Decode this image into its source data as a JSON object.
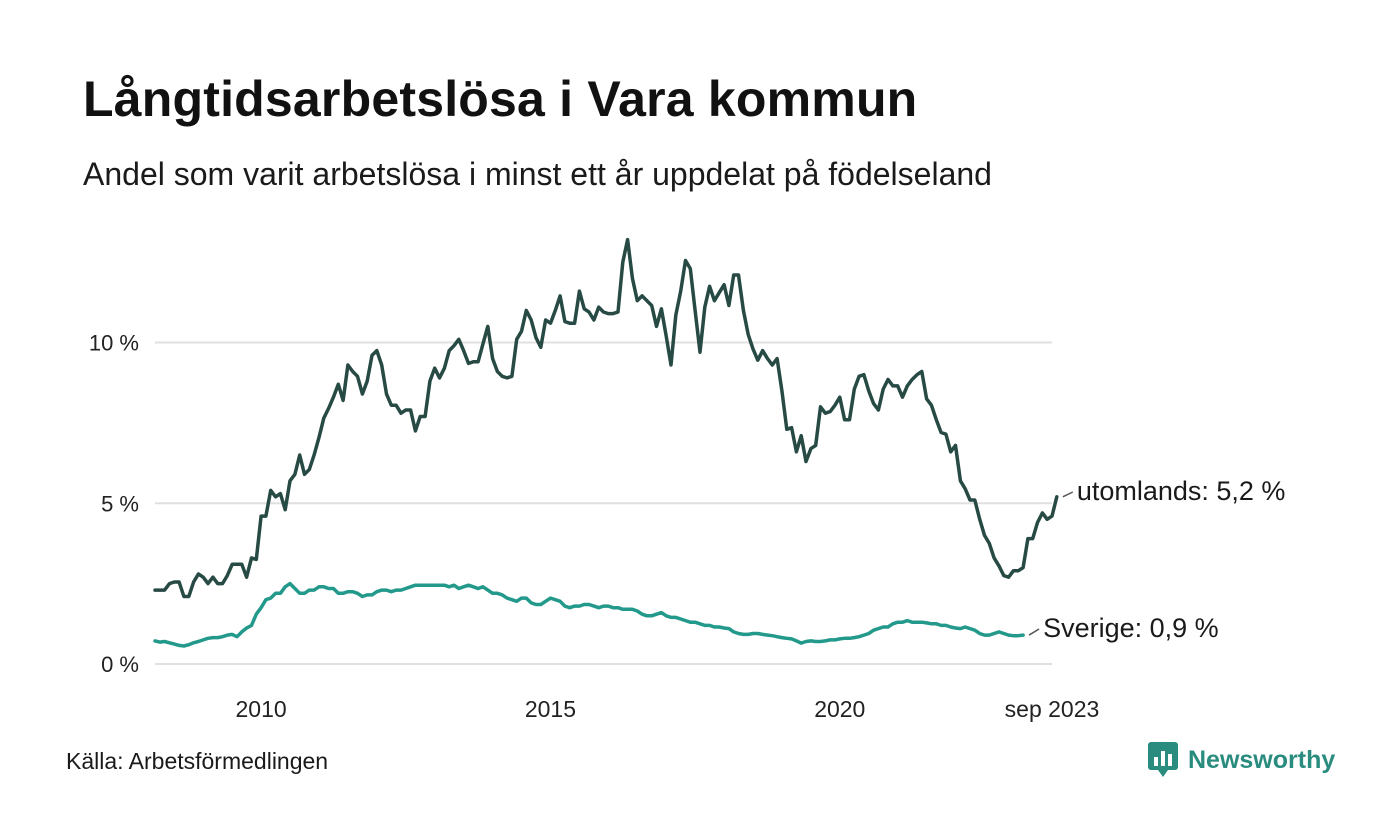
{
  "title": "Långtidsarbetslösa i Vara kommun",
  "subtitle": "Andel som varit arbetslösa i minst ett år uppdelat på födelseland",
  "source": "Källa: Arbetsförmedlingen",
  "brand": "Newsworthy",
  "colors": {
    "utomlands": "#274a44",
    "sverige": "#22998a",
    "grid": "#e0e0e0",
    "brand": "#2a8c7e"
  },
  "chart_data": {
    "type": "line",
    "title": "Långtidsarbetslösa i Vara kommun",
    "xlabel": "",
    "ylabel": "",
    "x_start": 2008.167,
    "x_step": 0.0833333,
    "xlim": [
      2008.167,
      2023.667
    ],
    "ylim": [
      0,
      13.5
    ],
    "y_ticks": [
      0,
      5,
      10
    ],
    "y_tick_labels": [
      "0 %",
      "5 %",
      "10 %"
    ],
    "x_ticks": [
      2010,
      2015,
      2020,
      2023.667
    ],
    "x_tick_labels": [
      "2010",
      "2015",
      "2020",
      "sep 2023"
    ],
    "series": [
      {
        "name": "utomlands",
        "end_label": "utomlands: 5,2 %",
        "values": [
          2.3,
          2.3,
          2.3,
          2.5,
          2.55,
          2.55,
          2.1,
          2.1,
          2.55,
          2.8,
          2.7,
          2.5,
          2.7,
          2.5,
          2.5,
          2.75,
          3.1,
          3.1,
          3.1,
          2.7,
          3.3,
          3.25,
          4.6,
          4.6,
          5.4,
          5.2,
          5.3,
          4.8,
          5.7,
          5.9,
          6.5,
          5.9,
          6.05,
          6.5,
          7.05,
          7.65,
          7.95,
          8.3,
          8.7,
          8.2,
          9.3,
          9.1,
          8.95,
          8.4,
          8.8,
          9.6,
          9.75,
          9.3,
          8.4,
          8.05,
          8.05,
          7.8,
          7.9,
          7.9,
          7.25,
          7.7,
          7.7,
          8.8,
          9.2,
          8.9,
          9.2,
          9.75,
          9.9,
          10.1,
          9.75,
          9.35,
          9.4,
          9.4,
          9.95,
          10.5,
          9.5,
          9.1,
          8.95,
          8.9,
          8.95,
          10.1,
          10.35,
          11.0,
          10.7,
          10.15,
          9.85,
          10.7,
          10.6,
          11.0,
          11.45,
          10.65,
          10.6,
          10.6,
          11.6,
          11.05,
          10.95,
          10.7,
          11.1,
          10.95,
          10.9,
          10.9,
          10.95,
          12.5,
          13.2,
          12.0,
          11.3,
          11.45,
          11.3,
          11.15,
          10.5,
          11.05,
          10.2,
          9.3,
          10.85,
          11.6,
          12.55,
          12.3,
          11.0,
          9.7,
          11.1,
          11.75,
          11.3,
          11.55,
          11.8,
          11.15,
          12.1,
          12.1,
          11.0,
          10.25,
          9.8,
          9.45,
          9.75,
          9.5,
          9.3,
          9.5,
          8.5,
          7.3,
          7.35,
          6.6,
          7.1,
          6.3,
          6.7,
          6.8,
          8.0,
          7.8,
          7.85,
          8.05,
          8.3,
          7.6,
          7.6,
          8.55,
          8.95,
          9.0,
          8.5,
          8.1,
          7.9,
          8.55,
          8.85,
          8.65,
          8.65,
          8.3,
          8.65,
          8.85,
          9.0,
          9.1,
          8.25,
          8.05,
          7.6,
          7.2,
          7.15,
          6.6,
          6.8,
          5.7,
          5.45,
          5.1,
          5.1,
          4.5,
          4.0,
          3.75,
          3.3,
          3.05,
          2.75,
          2.7,
          2.9,
          2.9,
          3.0,
          3.9,
          3.9,
          4.4,
          4.7,
          4.5,
          4.6,
          5.2
        ]
      },
      {
        "name": "Sverige",
        "end_label": "Sverige: 0,9 %",
        "values": [
          0.72,
          0.68,
          0.7,
          0.66,
          0.62,
          0.58,
          0.56,
          0.6,
          0.66,
          0.7,
          0.75,
          0.8,
          0.82,
          0.82,
          0.85,
          0.9,
          0.92,
          0.85,
          1.0,
          1.12,
          1.2,
          1.55,
          1.75,
          2.0,
          2.05,
          2.2,
          2.2,
          2.4,
          2.5,
          2.35,
          2.2,
          2.2,
          2.3,
          2.3,
          2.4,
          2.4,
          2.35,
          2.35,
          2.2,
          2.2,
          2.25,
          2.25,
          2.2,
          2.1,
          2.15,
          2.15,
          2.25,
          2.3,
          2.3,
          2.25,
          2.3,
          2.3,
          2.35,
          2.4,
          2.45,
          2.45,
          2.45,
          2.45,
          2.45,
          2.45,
          2.45,
          2.4,
          2.45,
          2.35,
          2.4,
          2.45,
          2.4,
          2.35,
          2.4,
          2.3,
          2.2,
          2.2,
          2.15,
          2.05,
          2.0,
          1.95,
          2.05,
          2.05,
          1.9,
          1.85,
          1.85,
          1.95,
          2.05,
          2.0,
          1.95,
          1.8,
          1.75,
          1.8,
          1.8,
          1.85,
          1.85,
          1.8,
          1.75,
          1.8,
          1.8,
          1.75,
          1.75,
          1.7,
          1.7,
          1.7,
          1.65,
          1.55,
          1.5,
          1.5,
          1.55,
          1.6,
          1.5,
          1.45,
          1.45,
          1.4,
          1.35,
          1.3,
          1.3,
          1.25,
          1.2,
          1.2,
          1.15,
          1.15,
          1.12,
          1.1,
          1.0,
          0.95,
          0.92,
          0.92,
          0.95,
          0.95,
          0.92,
          0.9,
          0.88,
          0.85,
          0.82,
          0.8,
          0.78,
          0.72,
          0.65,
          0.7,
          0.72,
          0.7,
          0.7,
          0.72,
          0.75,
          0.75,
          0.78,
          0.8,
          0.8,
          0.82,
          0.85,
          0.9,
          0.95,
          1.05,
          1.1,
          1.15,
          1.15,
          1.25,
          1.3,
          1.3,
          1.35,
          1.3,
          1.3,
          1.3,
          1.28,
          1.25,
          1.25,
          1.2,
          1.2,
          1.15,
          1.12,
          1.1,
          1.15,
          1.1,
          1.05,
          0.95,
          0.9,
          0.9,
          0.95,
          1.0,
          0.95,
          0.9,
          0.88,
          0.88,
          0.9
        ]
      }
    ]
  }
}
